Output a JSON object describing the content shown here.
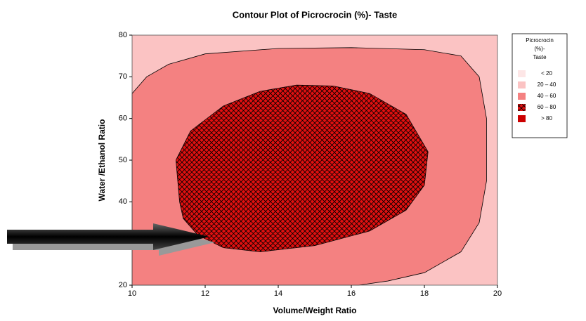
{
  "chart_data": {
    "type": "contour",
    "title": "Contour Plot of Picrocrocin (%)-  Taste",
    "x_label": "Volume/Weight Ratio",
    "y_label": "Water /Ethanol Ratio",
    "xlim": [
      10,
      20
    ],
    "xticks": [
      10,
      12,
      14,
      16,
      18,
      20
    ],
    "ylim": [
      20,
      80
    ],
    "yticks": [
      20,
      30,
      40,
      50,
      60,
      70,
      80
    ],
    "legend_title": [
      "Picrocrocin",
      "(%)-",
      "Taste"
    ],
    "levels": [
      {
        "label": "< 20",
        "color": "#fde6e6",
        "hatch": false
      },
      {
        "label": "20 – 40",
        "color": "#fbc3c3",
        "hatch": false
      },
      {
        "label": "40 – 60",
        "color": "#f48181",
        "hatch": false
      },
      {
        "label": "60 – 80",
        "color": "#e01010",
        "hatch": true
      },
      {
        "label": "> 80",
        "color": "#cc0000",
        "hatch": false
      }
    ],
    "contours": [
      {
        "color": "#fbc3c3",
        "hatch": false,
        "x": [
          10,
          20,
          20,
          10
        ],
        "y": [
          20,
          20,
          80,
          80
        ]
      },
      {
        "color": "#f48181",
        "hatch": false,
        "x": [
          10,
          10,
          10.4,
          11,
          12,
          14,
          16,
          18,
          19,
          19.5,
          19.7,
          19.7,
          19.5,
          19,
          18,
          17,
          16.2
        ],
        "y": [
          20,
          66,
          70,
          73,
          75.5,
          76.8,
          77,
          76.5,
          75,
          70,
          60,
          45,
          35,
          28,
          23,
          21,
          20
        ]
      },
      {
        "color": "#e01010",
        "hatch": true,
        "x": [
          11.3,
          11.2,
          11.6,
          12.5,
          13.5,
          14.5,
          15.5,
          16.5,
          17.5,
          18.1,
          18,
          17.5,
          16.5,
          15,
          13.5,
          12.5,
          11.8,
          11.4
        ],
        "y": [
          40,
          50,
          57,
          63,
          66.5,
          68,
          67.8,
          66,
          61,
          52,
          44,
          38,
          33,
          29.5,
          28,
          29,
          32,
          36
        ]
      }
    ]
  }
}
